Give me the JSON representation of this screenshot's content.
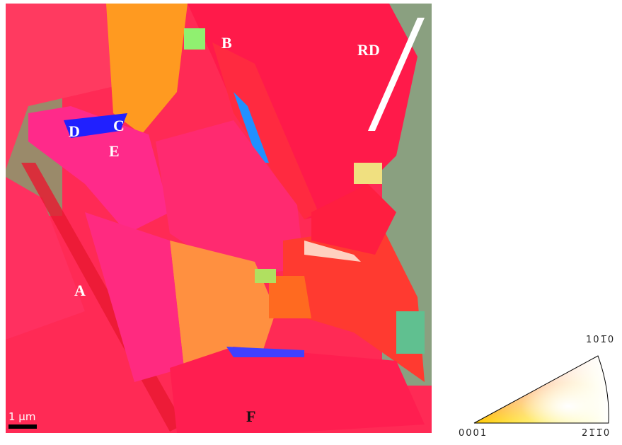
{
  "map": {
    "labels": {
      "A": "A",
      "B": "B",
      "C": "C",
      "D": "D",
      "E": "E",
      "F": "F",
      "rd": "RD",
      "scale": "1 µm"
    }
  },
  "legend": {
    "top": "101̅0",
    "left": "0001",
    "right": "21̅1̅0"
  }
}
